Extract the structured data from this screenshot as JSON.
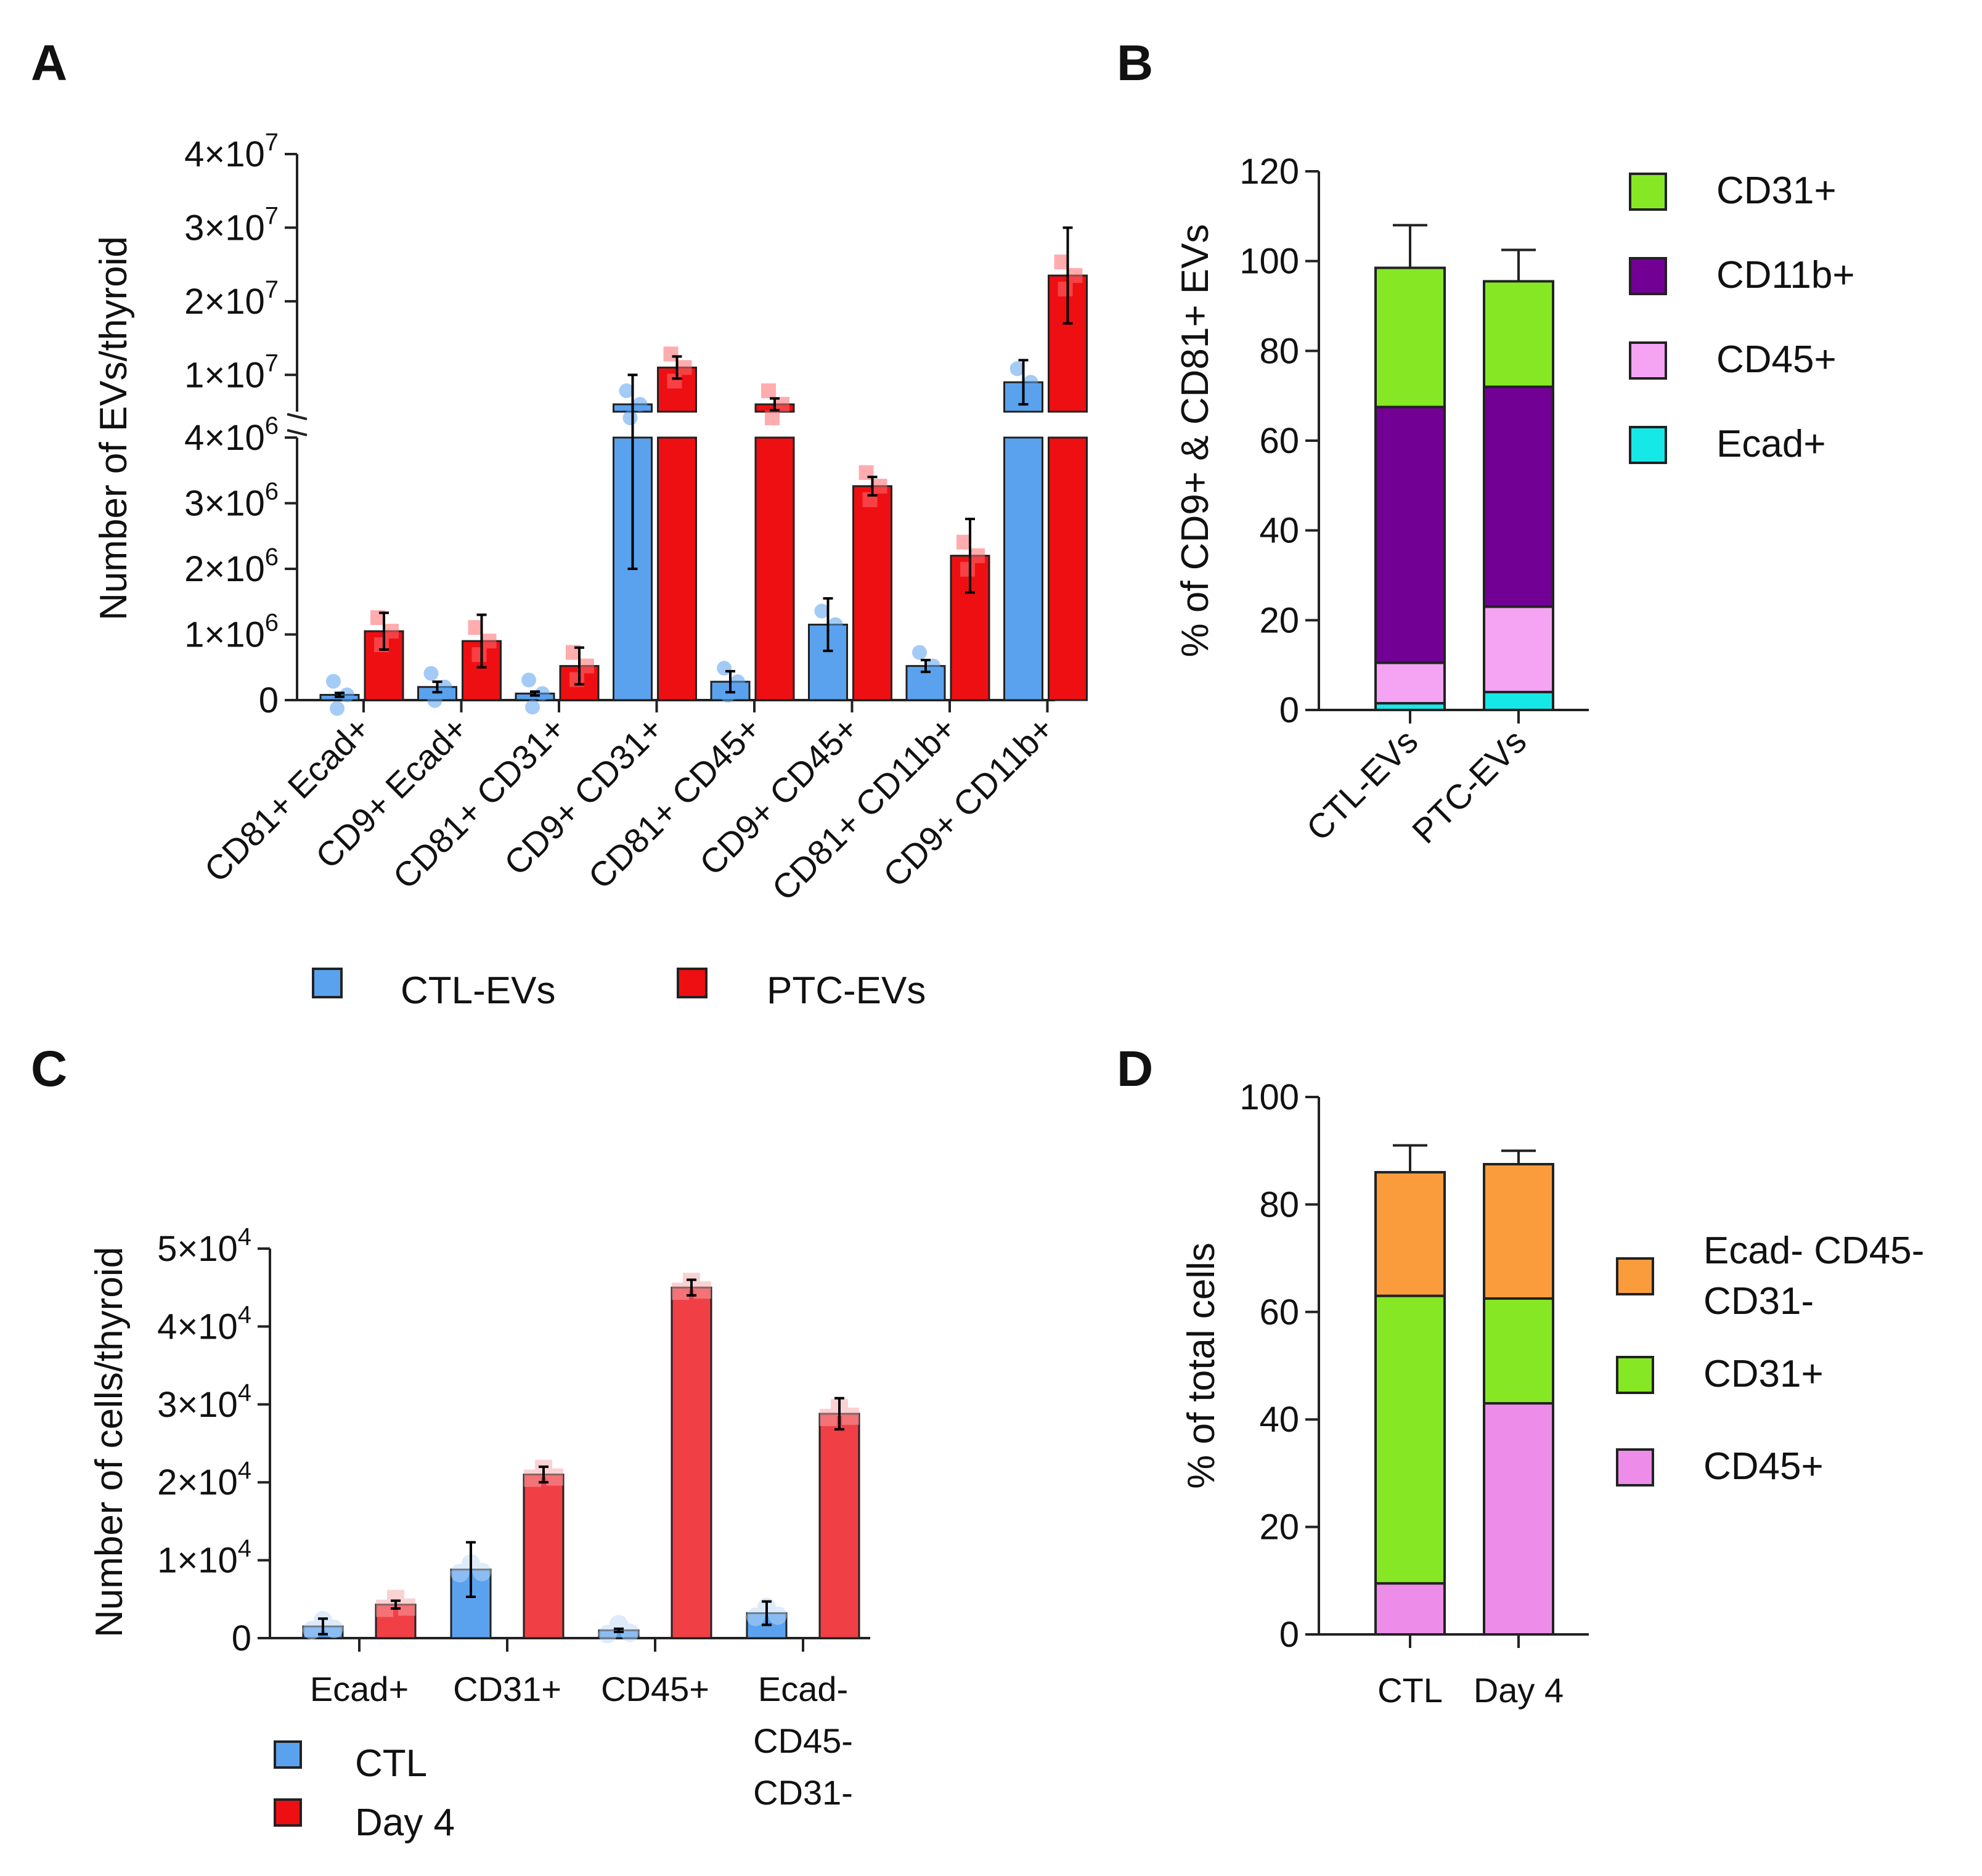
{
  "panels": [
    {
      "id": "A",
      "label": "A"
    },
    {
      "id": "B",
      "label": "B"
    },
    {
      "id": "C",
      "label": "C"
    },
    {
      "id": "D",
      "label": "D"
    }
  ],
  "colors": {
    "ctl_blue": "#5aa2ee",
    "ptc_red": "#ee0f12",
    "cells_red": "#f04046",
    "cd31_green": "#86e824",
    "cd11b_purple": "#720094",
    "cd45_pink_b": "#f5a4f3",
    "ecad_cyan": "#16e8e8",
    "orange": "#fb9c3c",
    "cd45_pink_d": "#ee8cea"
  },
  "chart_data": [
    {
      "panel": "A",
      "type": "bar",
      "ylabel": "Number of EVs/thyroid",
      "y_axis_break": true,
      "lower_ylim": [
        0,
        4000000
      ],
      "upper_ylim": [
        5000000,
        40000000
      ],
      "lower_ticks": [
        "0",
        "1×10^6",
        "2×10^6",
        "3×10^6",
        "4×10^6"
      ],
      "upper_ticks": [
        "1×10^7",
        "2×10^7",
        "3×10^7",
        "4×10^7"
      ],
      "categories": [
        "CD81+ Ecad+",
        "CD9+ Ecad+",
        "CD81+ CD31+",
        "CD9+ CD31+",
        "CD81+ CD45+",
        "CD9+ CD45+",
        "CD81+ CD11b+",
        "CD9+ CD11b+"
      ],
      "series": [
        {
          "name": "CTL-EVs",
          "values": [
            80000,
            200000,
            100000,
            6000000,
            280000,
            1150000,
            520000,
            9000000
          ],
          "errors": [
            30000,
            80000,
            30000,
            4000000,
            160000,
            400000,
            90000,
            3000000
          ]
        },
        {
          "name": "PTC-EVs",
          "values": [
            1050000,
            900000,
            520000,
            11000000,
            6000000,
            3260000,
            2200000,
            23500000
          ],
          "errors": [
            280000,
            400000,
            280000,
            1500000,
            800000,
            140000,
            560000,
            6500000
          ]
        }
      ],
      "legend": [
        "CTL-EVs",
        "PTC-EVs"
      ]
    },
    {
      "panel": "B",
      "type": "bar",
      "stacked": true,
      "ylabel": "% of CD9+ & CD81+ EVs",
      "ylim": [
        0,
        120
      ],
      "yticks": [
        "0",
        "20",
        "40",
        "60",
        "80",
        "100",
        "120"
      ],
      "categories": [
        "CTL-EVs",
        "PTC-EVs"
      ],
      "series": [
        {
          "name": "Ecad+",
          "values": [
            1.5,
            4
          ],
          "errors": [
            0.8,
            1.5
          ]
        },
        {
          "name": "CD45+",
          "values": [
            9,
            19
          ],
          "errors": [
            4.5,
            1.5
          ]
        },
        {
          "name": "CD11b+",
          "values": [
            57,
            49
          ],
          "errors": [
            8,
            9.5
          ]
        },
        {
          "name": "CD31+",
          "values": [
            31,
            23.5
          ],
          "errors": [
            9.5,
            7
          ]
        }
      ],
      "legend": [
        "CD31+",
        "CD11b+",
        "CD45+",
        "Ecad+"
      ]
    },
    {
      "panel": "C",
      "type": "bar",
      "ylabel": "Number of cells/thyroid",
      "ylim": [
        0,
        50000
      ],
      "yticks": [
        "0",
        "1×10^4",
        "2×10^4",
        "3×10^4",
        "4×10^4",
        "5×10^4"
      ],
      "categories": [
        "Ecad+",
        "CD31+",
        "CD45+",
        "Ecad- CD45- CD31-"
      ],
      "category_lines": [
        [
          "Ecad+"
        ],
        [
          "CD31+"
        ],
        [
          "CD45+"
        ],
        [
          "Ecad-",
          "CD45-",
          "CD31-"
        ]
      ],
      "series": [
        {
          "name": "CTL",
          "values": [
            1500,
            8800,
            1000,
            3200
          ],
          "errors": [
            1000,
            3500,
            200,
            1500
          ]
        },
        {
          "name": "Day 4",
          "values": [
            4300,
            21000,
            45000,
            28800
          ],
          "errors": [
            500,
            1000,
            1000,
            2000
          ]
        }
      ],
      "legend": [
        "CTL",
        "Day 4"
      ]
    },
    {
      "panel": "D",
      "type": "bar",
      "stacked": true,
      "ylabel": "% of total cells",
      "ylim": [
        0,
        100
      ],
      "yticks": [
        "0",
        "20",
        "40",
        "60",
        "80",
        "100"
      ],
      "categories": [
        "CTL",
        "Day 4"
      ],
      "series": [
        {
          "name": "CD45+",
          "values": [
            9.5,
            43
          ],
          "errors": [
            3,
            7
          ]
        },
        {
          "name": "CD31+",
          "values": [
            53.5,
            19.5
          ],
          "errors": [
            11,
            3.5
          ]
        },
        {
          "name": "Ecad- CD45- CD31-",
          "values": [
            23,
            25
          ],
          "errors": [
            5,
            2.5
          ]
        }
      ],
      "legend": [
        "Ecad- CD45- CD31-",
        "CD31+",
        "CD45+"
      ],
      "legend_lines": [
        [
          "Ecad- CD45-",
          "CD31-"
        ],
        [
          "CD31+"
        ],
        [
          "CD45+"
        ]
      ]
    }
  ]
}
